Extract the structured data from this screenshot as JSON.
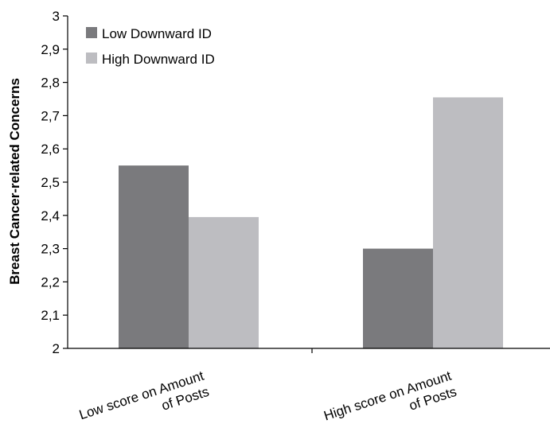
{
  "chart_data": {
    "type": "bar",
    "ylabel": "Breast Cancer-related Concerns",
    "ylim": [
      2,
      3
    ],
    "yticks": [
      "2",
      "2,1",
      "2,2",
      "2,3",
      "2,4",
      "2,5",
      "2,6",
      "2,7",
      "2,8",
      "2,9",
      "3"
    ],
    "categories": [
      [
        "Low score on Amount",
        "of Posts"
      ],
      [
        "High score on Amount",
        "of Posts"
      ]
    ],
    "series": [
      {
        "name": "Low Downward ID",
        "color": "#7a7a7d",
        "values": [
          2.55,
          2.3
        ]
      },
      {
        "name": "High Downward ID",
        "color": "#bdbdc1",
        "values": [
          2.395,
          2.755
        ]
      }
    ],
    "legend_position": "top-left",
    "grid": false
  }
}
